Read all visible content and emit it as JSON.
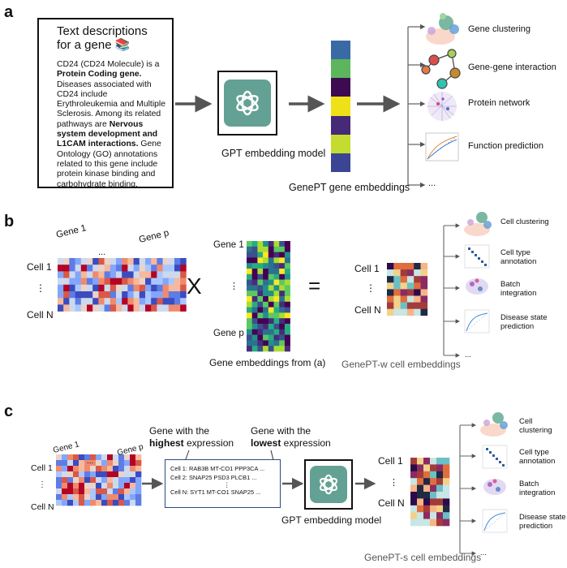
{
  "panel_a": {
    "label": "a",
    "text_box": {
      "title_line1": "Text descriptions",
      "title_line2": "for a gene 📚",
      "body_parts": [
        {
          "text": "CD24 (CD24 Molecule) is a ",
          "bold": false
        },
        {
          "text": "Protein Coding gene.",
          "bold": true
        },
        {
          "text": " Diseases associated with CD24 include Erythroleukemia and Multiple Sclerosis. Among its related pathways are ",
          "bold": false
        },
        {
          "text": "Nervous system development and L1CAM interactions.",
          "bold": true
        },
        {
          "text": " Gene Ontology (GO) annotations related to this gene include protein kinase binding and carbohydrate binding.",
          "bold": false
        }
      ]
    },
    "model_label": "GPT embedding model",
    "embedding_label": "GenePT gene embeddings",
    "embedding_colors": [
      "#3a6aa6",
      "#5cb65b",
      "#3d0b52",
      "#efe118",
      "#462a78",
      "#c4dc30",
      "#3b4593"
    ],
    "applications": [
      "Gene clustering",
      "Gene-gene interaction",
      "Protein network",
      "Function prediction",
      "..."
    ]
  },
  "panel_b": {
    "label": "b",
    "gene1": "Gene 1",
    "dots": "...",
    "genep": "Gene p",
    "cell1": "Cell 1",
    "vdots": "⋮",
    "celln": "Cell N",
    "times": "X",
    "equals": "=",
    "emb_gene1": "Gene 1",
    "emb_genep": "Gene p",
    "emb_caption": "Gene embeddings from (a)",
    "cellw_cell1": "Cell 1",
    "cellw_celln": "Cell N",
    "cellw_caption": "GenePT-w cell embeddings",
    "applications": [
      "Cell clustering",
      "Cell type annotation",
      "Batch integration",
      "Disease state prediction",
      "..."
    ]
  },
  "panel_c": {
    "label": "c",
    "gene1": "Gene 1",
    "dots": "...",
    "genep": "Gene p",
    "cell1": "Cell 1",
    "vdots": "⋮",
    "celln": "Cell N",
    "highest_line1": "Gene with the",
    "highest_bold": "highest",
    "highest_rest": " expression",
    "lowest_line1": "Gene with the",
    "lowest_bold": "lowest",
    "lowest_rest": " expression",
    "expr_lines": [
      "Cell 1: RAB3B MT-CO1 PPP3CA ...",
      "Cell 2: SNAP25 PSD3 PLCB1 ...",
      "⋮",
      "Cell N: SYT1 MT-CO1 SNAP25 ..."
    ],
    "model_label": "GPT embedding model",
    "cells_cell1": "Cell 1",
    "cells_celln": "Cell N",
    "cells_caption": "GenePT-s cell embeddings",
    "applications": [
      "Cell clustering",
      "Cell type annotation",
      "Batch integration",
      "Disease state prediction",
      "..."
    ]
  }
}
